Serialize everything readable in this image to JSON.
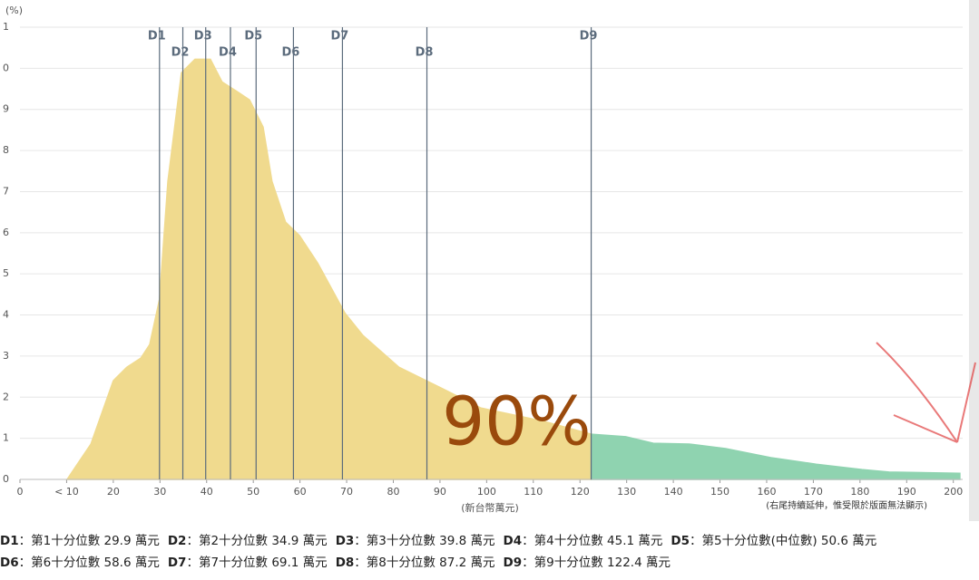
{
  "chart_data": {
    "type": "area",
    "y_label": "(%)",
    "x_label": "(新台幣萬元)",
    "note": "(右尾持續延伸，惟受限於版面無法顯示)",
    "annotation": "90%",
    "xlim": [
      0,
      202
    ],
    "ylim": [
      0,
      11
    ],
    "xticks": [
      0,
      {
        "value": 10,
        "label": "< 10"
      },
      20,
      30,
      40,
      50,
      60,
      70,
      80,
      90,
      100,
      110,
      120,
      130,
      140,
      150,
      160,
      170,
      180,
      190,
      200
    ],
    "yticks": [
      0,
      1,
      2,
      3,
      4,
      5,
      6,
      7,
      8,
      9,
      {
        "value": 10,
        "label": "0"
      },
      {
        "value": 11,
        "label": "1"
      }
    ],
    "grid": true,
    "series": [
      {
        "color": "#f0da8e",
        "x": [
          10.1,
          15.2,
          20,
          22.9,
          25.9,
          27.8,
          29.9,
          31.7,
          34.6,
          37.5,
          40.8,
          43.3,
          46.3,
          49.2,
          52.1,
          54,
          56.9,
          59.9,
          63.8,
          69.6,
          73.5,
          81.2,
          91,
          98.7,
          112.3,
          122.4
        ],
        "values": [
          0,
          0.86,
          2.4,
          2.73,
          2.95,
          3.28,
          4.38,
          7.25,
          9.89,
          10.22,
          10.22,
          9.67,
          9.45,
          9.23,
          8.57,
          7.25,
          6.26,
          5.93,
          5.26,
          4.05,
          3.5,
          2.73,
          2.18,
          1.74,
          1.41,
          1.1
        ]
      },
      {
        "color": "#8fd3b0",
        "x": [
          122.4,
          129.8,
          135.7,
          143.4,
          151.2,
          160.9,
          170.6,
          180.4,
          186.2,
          201.4
        ],
        "values": [
          1.1,
          1.04,
          0.88,
          0.86,
          0.75,
          0.53,
          0.37,
          0.24,
          0.18,
          0.15
        ]
      }
    ],
    "deciles": [
      {
        "label": "D1",
        "value": 29.9
      },
      {
        "label": "D2",
        "value": 34.9
      },
      {
        "label": "D3",
        "value": 39.8
      },
      {
        "label": "D4",
        "value": 45.1
      },
      {
        "label": "D5",
        "value": 50.6
      },
      {
        "label": "D6",
        "value": 58.6
      },
      {
        "label": "D7",
        "value": 69.1
      },
      {
        "label": "D8",
        "value": 87.2
      },
      {
        "label": "D9",
        "value": 122.4
      }
    ]
  },
  "footer": {
    "rows": [
      [
        {
          "key": "D1",
          "text": "：第1十分位數 29.9 萬元"
        },
        {
          "key": "D2",
          "text": "：第2十分位數 34.9 萬元"
        },
        {
          "key": "D3",
          "text": "：第3十分位數 39.8 萬元"
        },
        {
          "key": "D4",
          "text": "：第4十分位數 45.1 萬元"
        },
        {
          "key": "D5",
          "text": "：第5十分位數(中位數) 50.6 萬元"
        }
      ],
      [
        {
          "key": "D6",
          "text": "：第6十分位數 58.6 萬元"
        },
        {
          "key": "D7",
          "text": "：第7十分位數 69.1 萬元"
        },
        {
          "key": "D8",
          "text": "：第8十分位數 87.2 萬元"
        },
        {
          "key": "D9",
          "text": "：第9十分位數 122.4 萬元"
        }
      ]
    ]
  }
}
